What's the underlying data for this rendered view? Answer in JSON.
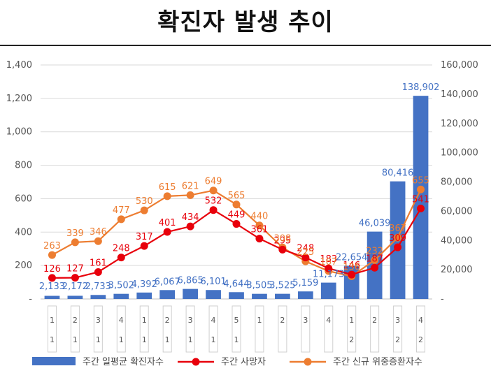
{
  "title": "확진자 발생 추이",
  "chart_data": {
    "type": "bar+line",
    "title": "확진자 발생 추이",
    "categories": [
      "1",
      "2",
      "3",
      "4",
      "1",
      "2",
      "3",
      "4",
      "5",
      "1",
      "2",
      "3",
      "4",
      "1",
      "2",
      "3",
      "4"
    ],
    "category_months": [
      "1",
      "1",
      "1",
      "1",
      "1",
      "1",
      "1",
      "1",
      "1",
      "",
      "",
      "",
      "",
      "2",
      "",
      "2",
      "2"
    ],
    "category_months_display": [
      "1",
      "1",
      "1",
      "1",
      "1",
      "1",
      "1",
      "1",
      "1",
      "",
      "",
      "",
      "",
      "2",
      "",
      "2",
      "2"
    ],
    "y_left": {
      "min": 0,
      "max": 1400,
      "ticks": [
        "-",
        "200",
        "400",
        "600",
        "800",
        "1,000",
        "1,200",
        "1,400"
      ]
    },
    "y_right": {
      "min": 0,
      "max": 160000,
      "ticks": [
        "-",
        "20,000",
        "40,000",
        "60,000",
        "80,000",
        "100,000",
        "120,000",
        "140,000",
        "160,000"
      ]
    },
    "series": [
      {
        "name": "주간 일평균 확진자수",
        "type": "bar",
        "axis": "right",
        "color": "#4472C4",
        "values": [
          2133,
          2172,
          2733,
          3502,
          4392,
          6067,
          6865,
          6101,
          4644,
          3505,
          3525,
          5159,
          11173,
          22654,
          46039,
          80416,
          138902
        ],
        "labels": [
          "2,133",
          "2,172",
          "2,733",
          "3,502",
          "4,392",
          "6,067",
          "6,865",
          "6,101",
          "4,644",
          "3,505",
          "3,525",
          "5,159",
          "11,173",
          "22,654",
          "46,039",
          "80,416",
          "138,902"
        ]
      },
      {
        "name": "주간 사망자",
        "type": "line",
        "axis": "left",
        "color": "#E8000B",
        "values": [
          126,
          127,
          161,
          248,
          317,
          401,
          434,
          532,
          449,
          361,
          295,
          248,
          183,
          146,
          187,
          309,
          541
        ],
        "labels": [
          "126",
          "127",
          "161",
          "248",
          "317",
          "401",
          "434",
          "532",
          "449",
          "361",
          "295",
          "248",
          "183",
          "146",
          "187",
          "309",
          "541"
        ]
      },
      {
        "name": "주간 신규 위중증환자수",
        "type": "line",
        "axis": "left",
        "color": "#ED7D31",
        "values": [
          263,
          339,
          346,
          477,
          530,
          615,
          621,
          649,
          565,
          440,
          308,
          225,
          167,
          136,
          232,
          367,
          655
        ],
        "labels": [
          "263",
          "339",
          "346",
          "477",
          "530",
          "615",
          "621",
          "649",
          "565",
          "440",
          "308",
          "225",
          "167",
          "136",
          "232",
          "367",
          "655"
        ]
      }
    ],
    "legend": {
      "position": "bottom",
      "items": [
        "주간 일평균 확진자수",
        "주간 사망자",
        "주간 신규 위중증환자수"
      ]
    }
  }
}
